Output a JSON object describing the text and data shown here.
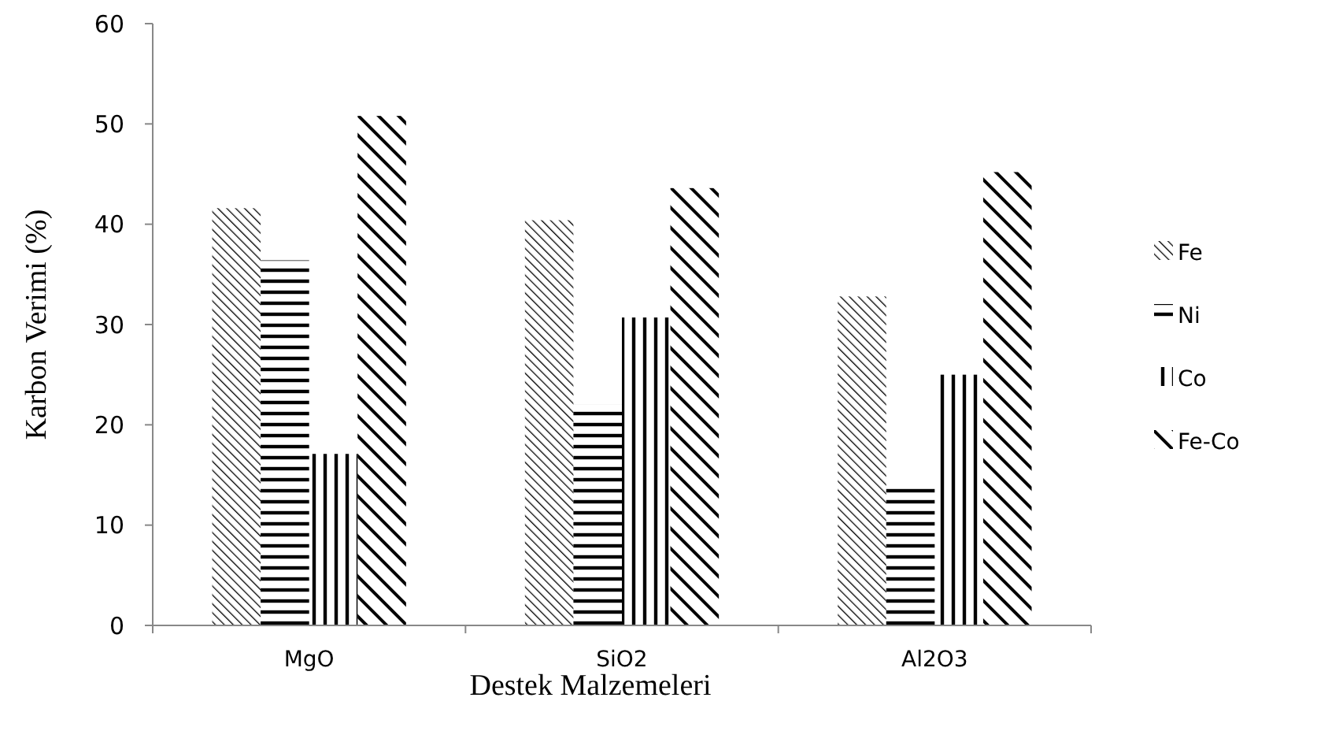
{
  "chart_data": {
    "type": "bar",
    "xlabel": "Destek Malzemeleri",
    "ylabel": "Karbon Verimi (%)",
    "categories": [
      "MgO",
      "SiO2",
      "Al2O3"
    ],
    "series": [
      {
        "name": "Fe",
        "color": "#000000",
        "values": [
          41.6,
          40.4,
          32.8
        ]
      },
      {
        "name": "Ni",
        "color": "#000000",
        "values": [
          36.4,
          22,
          14
        ]
      },
      {
        "name": "Co",
        "color": "#000000",
        "values": [
          17.1,
          30.7,
          25
        ]
      },
      {
        "name": "Fe-Co",
        "color": "#000000",
        "values": [
          50.8,
          43.6,
          45.2
        ]
      }
    ],
    "ylim": [
      0,
      60
    ],
    "yticks": [
      0,
      10,
      20,
      30,
      40,
      50,
      60
    ],
    "grid": false,
    "legend": "right"
  }
}
